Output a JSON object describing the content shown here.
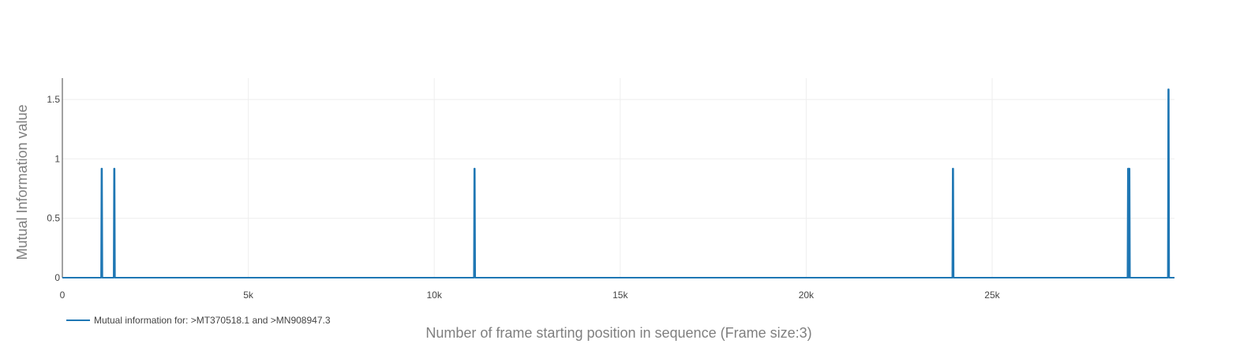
{
  "chart_data": {
    "type": "line",
    "title": "",
    "xlabel": "Number of frame starting position in sequence (Frame size:3)",
    "ylabel": "Mutual Information value",
    "xlim": [
      0,
      29903
    ],
    "ylim": [
      0,
      1.68
    ],
    "x_ticks": [
      0,
      5000,
      10000,
      15000,
      20000,
      25000
    ],
    "x_tick_labels": [
      "0",
      "5k",
      "10k",
      "15k",
      "20k",
      "25k"
    ],
    "y_ticks": [
      0,
      0.5,
      1,
      1.5
    ],
    "y_tick_labels": [
      "0",
      "0.5",
      "1",
      "1.5"
    ],
    "grid": true,
    "legend_position": "bottom-left",
    "series": [
      {
        "name": "Mutual information for: >MT370518.1 and >MN908947.3",
        "color": "#1f77b4",
        "baseline": 0,
        "spikes": [
          {
            "x": 1059,
            "y": 0.918
          },
          {
            "x": 1397,
            "y": 0.918
          },
          {
            "x": 11083,
            "y": 0.918
          },
          {
            "x": 23947,
            "y": 0.918
          },
          {
            "x": 28657,
            "y": 0.918
          },
          {
            "x": 28688,
            "y": 0.918
          },
          {
            "x": 29742,
            "y": 1.585
          }
        ]
      }
    ]
  }
}
